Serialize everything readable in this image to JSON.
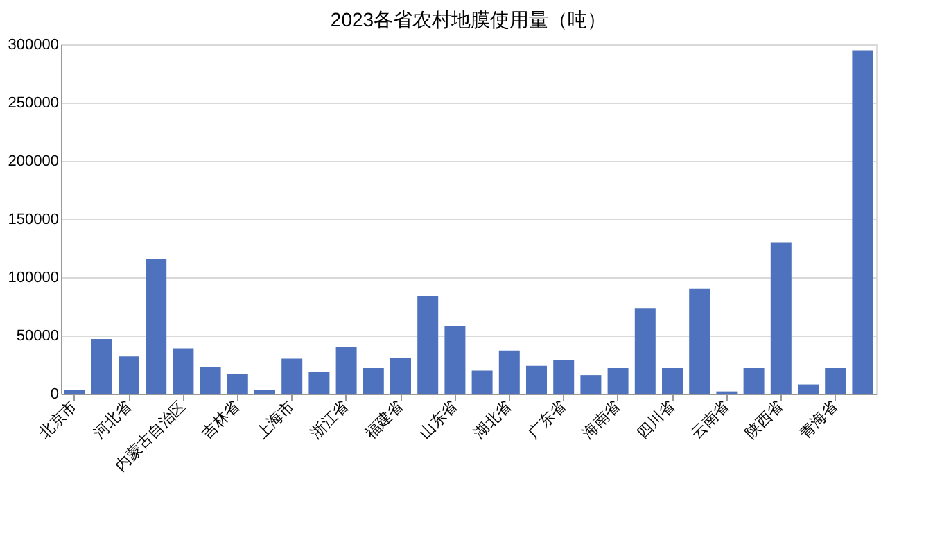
{
  "chart_data": {
    "type": "bar",
    "title": "2023各省农村地膜使用量（吨）",
    "categories": [
      "北京市",
      null,
      "河北省",
      null,
      "内蒙古自治区",
      null,
      "吉林省",
      null,
      "上海市",
      null,
      "浙江省",
      null,
      "福建省",
      null,
      "山东省",
      null,
      "湖北省",
      null,
      "广东省",
      null,
      "海南省",
      null,
      "四川省",
      null,
      "云南省",
      null,
      "陕西省",
      null,
      "青海省",
      null
    ],
    "values": [
      3000,
      47000,
      32000,
      116000,
      39000,
      23000,
      17000,
      3000,
      30000,
      19000,
      40000,
      22000,
      31000,
      84000,
      58000,
      20000,
      37000,
      24000,
      29000,
      16000,
      22000,
      73000,
      22000,
      90000,
      2000,
      22000,
      130000,
      8000,
      22000,
      295000
    ],
    "color": "#4f72be",
    "ylim": [
      0,
      300000
    ],
    "yticks": [
      0,
      50000,
      100000,
      150000,
      200000,
      250000,
      300000
    ],
    "grid": "y"
  }
}
